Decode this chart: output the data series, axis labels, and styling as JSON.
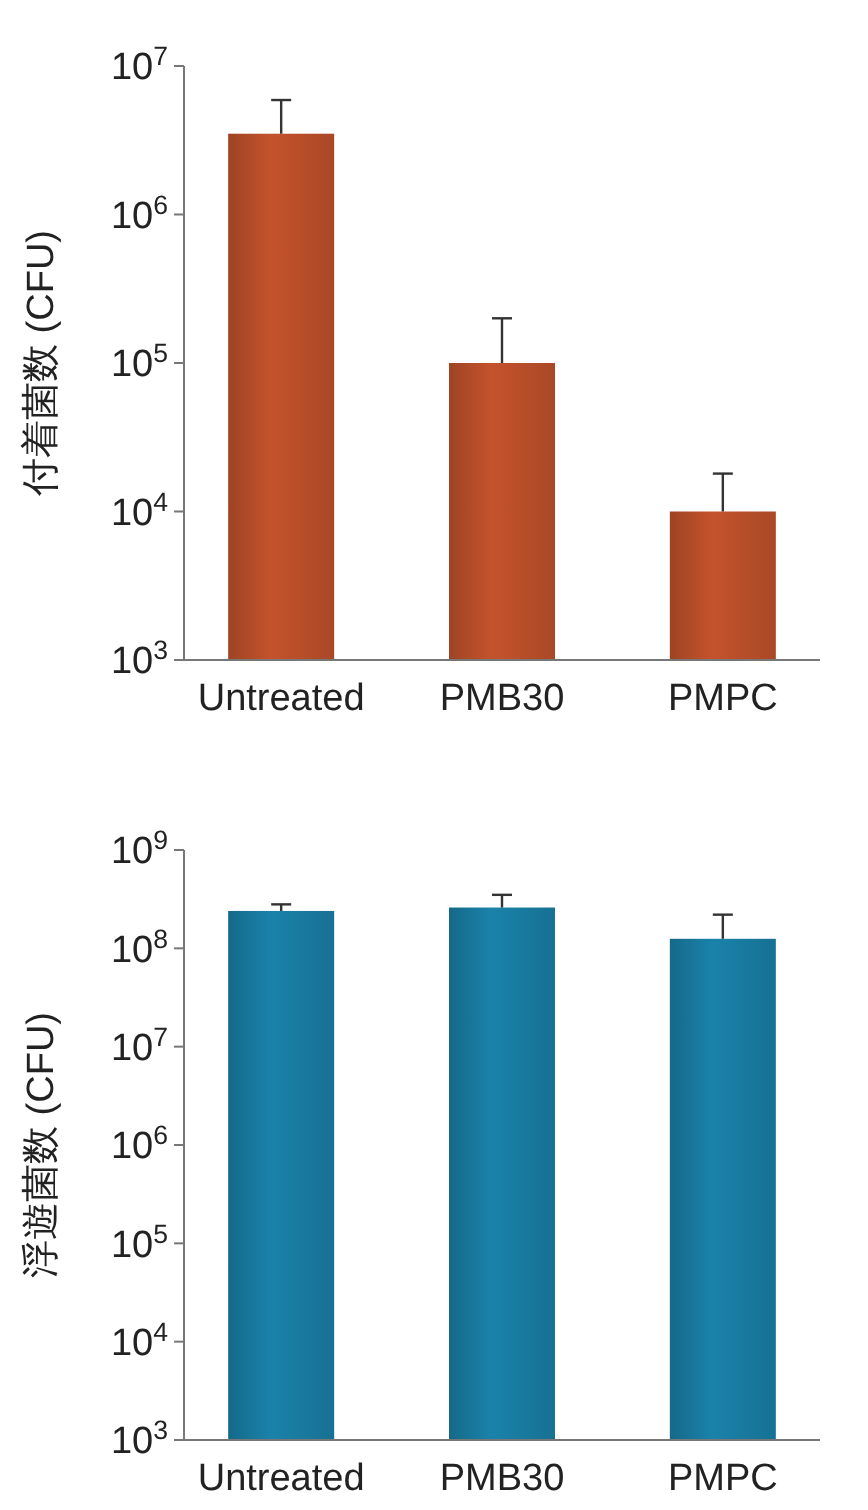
{
  "chart_data": [
    {
      "type": "bar",
      "ylabel": "付着菌数 (CFU)",
      "categories": [
        "Untreated",
        "PMB30",
        "PMPC"
      ],
      "log": true,
      "series": [
        {
          "color": "#c4532c",
          "values": [
            3500000,
            100000,
            10000
          ],
          "errors": [
            [
              3500000,
              5900000
            ],
            [
              100000,
              200000
            ],
            [
              10000,
              18000
            ]
          ]
        }
      ],
      "ylim": [
        1000,
        10000000
      ],
      "yticks": [
        {
          "value": 1000,
          "label": "10$^{3}$"
        },
        {
          "value": 10000,
          "label": "10$^{4}$"
        },
        {
          "value": 100000,
          "label": "10$^{5}$"
        },
        {
          "value": 1000000,
          "label": "10$^{6}$"
        },
        {
          "value": 10000000,
          "label": "10$^{7}$"
        }
      ]
    },
    {
      "type": "bar",
      "ylabel": "浮遊菌数 (CFU)",
      "categories": [
        "Untreated",
        "PMB30",
        "PMPC"
      ],
      "log": true,
      "series": [
        {
          "color": "#1a82aa",
          "values": [
            240000000,
            260000000,
            125000000
          ],
          "errors": [
            [
              240000000,
              280000000
            ],
            [
              260000000,
              350000000
            ],
            [
              125000000,
              220000000
            ]
          ]
        }
      ],
      "ylim": [
        1000,
        1000000000
      ],
      "yticks": [
        {
          "value": 1000,
          "label": "10$^{3}$"
        },
        {
          "value": 10000,
          "label": "10$^{4}$"
        },
        {
          "value": 100000,
          "label": "10$^{5}$"
        },
        {
          "value": 1000000,
          "label": "10$^{6}$"
        },
        {
          "value": 10000000,
          "label": "10$^{7}$"
        },
        {
          "value": 100000000,
          "label": "10$^{8}$"
        },
        {
          "value": 1000000000,
          "label": "10$^{9}$"
        }
      ]
    }
  ]
}
